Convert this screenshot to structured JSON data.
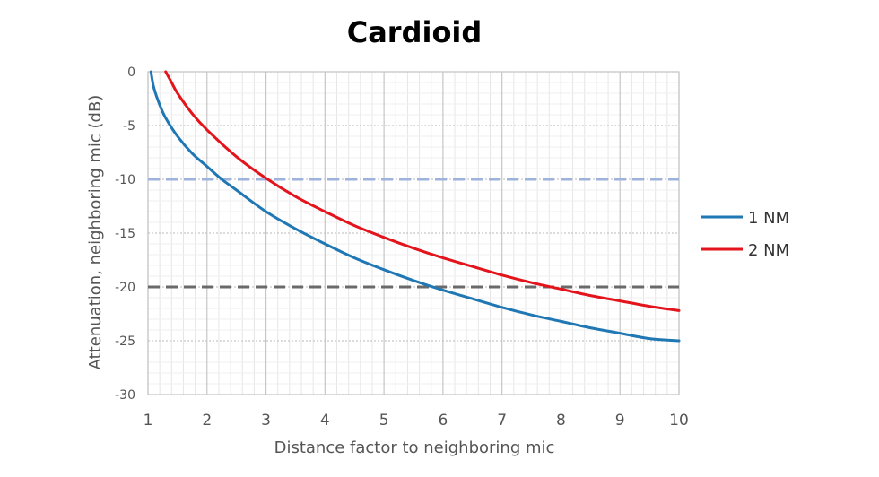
{
  "chart_data": {
    "type": "line",
    "title": "Cardioid",
    "xlabel": "Distance factor to neighboring mic",
    "ylabel": "Attenuation, neighboring mic (dB)",
    "xlim": [
      1,
      10
    ],
    "ylim": [
      -30,
      0
    ],
    "x_ticks": [
      1,
      2,
      3,
      4,
      5,
      6,
      7,
      8,
      9,
      10
    ],
    "y_ticks": [
      0,
      -5,
      -10,
      -15,
      -20,
      -25,
      -30
    ],
    "x_minor_step": 0.2,
    "y_minor_step": 1,
    "grid": true,
    "legend_position": "right",
    "series": [
      {
        "name": "1 NM",
        "color": "#1f77b4",
        "x": [
          1.05,
          1.1,
          1.2,
          1.3,
          1.5,
          1.75,
          2,
          2.25,
          2.5,
          3,
          3.5,
          4,
          4.5,
          5,
          5.5,
          6,
          6.5,
          7,
          7.5,
          8,
          8.5,
          9,
          9.5,
          10
        ],
        "y": [
          0,
          -1.5,
          -3.1,
          -4.3,
          -6.0,
          -7.6,
          -8.8,
          -10.0,
          -11.0,
          -13.0,
          -14.6,
          -16.0,
          -17.3,
          -18.4,
          -19.4,
          -20.3,
          -21.1,
          -21.9,
          -22.6,
          -23.2,
          -23.8,
          -24.3,
          -24.8,
          -25.0
        ]
      },
      {
        "name": "2 NM",
        "color": "#e3141b",
        "x": [
          1.3,
          1.4,
          1.5,
          1.75,
          2,
          2.5,
          3,
          3.5,
          4,
          4.5,
          5,
          5.5,
          6,
          6.5,
          7,
          7.5,
          8,
          8.5,
          9,
          9.5,
          10
        ],
        "y": [
          0,
          -1.0,
          -2.0,
          -3.9,
          -5.4,
          -7.9,
          -9.9,
          -11.6,
          -13.0,
          -14.3,
          -15.4,
          -16.4,
          -17.3,
          -18.1,
          -18.9,
          -19.6,
          -20.2,
          -20.8,
          -21.3,
          -21.8,
          -22.2
        ]
      }
    ],
    "reference_lines": [
      {
        "y": -10,
        "color": "#9db3de",
        "style": "dashed"
      },
      {
        "y": -20,
        "color": "#6a6a6a",
        "style": "dashed"
      }
    ]
  }
}
